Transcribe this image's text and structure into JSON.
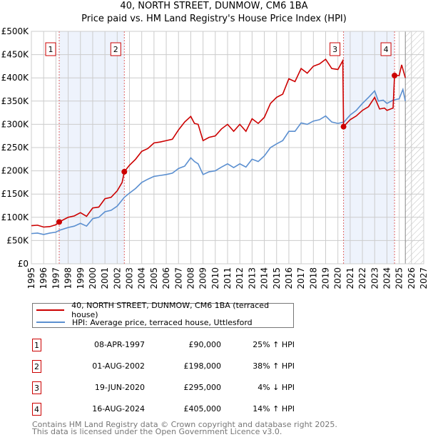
{
  "title": "40, NORTH STREET, DUNMOW, CM6 1BA",
  "subtitle": "Price paid vs. HM Land Registry's House Price Index (HPI)",
  "chart_data": {
    "type": "line",
    "title": "40, NORTH STREET, DUNMOW, CM6 1BA — Price paid vs. HM Land Registry's House Price Index (HPI)",
    "xlim": [
      1995,
      2027
    ],
    "ylim": [
      0,
      500000
    ],
    "yticks": [
      0,
      50000,
      100000,
      150000,
      200000,
      250000,
      300000,
      350000,
      400000,
      450000,
      500000
    ],
    "ytick_labels": [
      "£0",
      "£50K",
      "£100K",
      "£150K",
      "£200K",
      "£250K",
      "£300K",
      "£350K",
      "£400K",
      "£450K",
      "£500K"
    ],
    "xticks": [
      "1995",
      "1996",
      "1997",
      "1998",
      "1999",
      "2000",
      "2001",
      "2002",
      "2003",
      "2004",
      "2005",
      "2006",
      "2007",
      "2008",
      "2009",
      "2010",
      "2011",
      "2012",
      "2013",
      "2014",
      "2015",
      "2016",
      "2017",
      "2018",
      "2019",
      "2020",
      "2021",
      "2022",
      "2023",
      "2024",
      "2025",
      "2026",
      "2027"
    ],
    "grid": true,
    "shaded_ranges": [
      [
        1997.27,
        2002.58
      ],
      [
        2020.46,
        2024.62
      ]
    ],
    "forecast_from": 2025.5,
    "colors": {
      "property": "#cc0000",
      "hpi": "#5b8fd0",
      "shade": "#eef3fc"
    },
    "series": [
      {
        "name": "40, NORTH STREET, DUNMOW, CM6 1BA (terraced house)",
        "x": [
          1995,
          1995.5,
          1996,
          1996.5,
          1997,
          1997.27,
          1998,
          1998.5,
          1999,
          1999.5,
          2000,
          2000.5,
          2001,
          2001.5,
          2002,
          2002.4,
          2002.58,
          2003,
          2003.5,
          2004,
          2004.5,
          2005,
          2005.5,
          2006,
          2006.5,
          2007,
          2007.5,
          2008,
          2008.3,
          2008.6,
          2009,
          2009.5,
          2010,
          2010.5,
          2011,
          2011.5,
          2012,
          2012.5,
          2013,
          2013.5,
          2014,
          2014.5,
          2015,
          2015.5,
          2016,
          2016.5,
          2017,
          2017.5,
          2018,
          2018.5,
          2019,
          2019.5,
          2020,
          2020.4,
          2020.46,
          2021,
          2021.5,
          2022,
          2022.5,
          2023,
          2023.4,
          2023.8,
          2024,
          2024.5,
          2024.62,
          2025,
          2025.2,
          2025.5
        ],
        "values": [
          82000,
          83000,
          79000,
          80000,
          84000,
          90000,
          100000,
          103000,
          110000,
          102000,
          120000,
          122000,
          140000,
          143000,
          157000,
          175000,
          198000,
          212000,
          225000,
          242000,
          248000,
          260000,
          262000,
          265000,
          268000,
          288000,
          305000,
          317000,
          302000,
          300000,
          265000,
          272000,
          275000,
          290000,
          300000,
          285000,
          300000,
          285000,
          312000,
          302000,
          315000,
          345000,
          358000,
          365000,
          398000,
          392000,
          420000,
          410000,
          425000,
          430000,
          440000,
          420000,
          418000,
          437000,
          295000,
          310000,
          318000,
          330000,
          338000,
          358000,
          333000,
          335000,
          330000,
          335000,
          405000,
          405000,
          428000,
          400000
        ]
      },
      {
        "name": "HPI: Average price, terraced house, Uttlesford",
        "x": [
          1995,
          1995.5,
          1996,
          1996.5,
          1997,
          1997.27,
          1998,
          1998.5,
          1999,
          1999.5,
          2000,
          2000.5,
          2001,
          2001.5,
          2002,
          2002.58,
          2003,
          2003.5,
          2004,
          2004.5,
          2005,
          2005.5,
          2006,
          2006.5,
          2007,
          2007.5,
          2008,
          2008.3,
          2008.6,
          2009,
          2009.5,
          2010,
          2010.5,
          2011,
          2011.5,
          2012,
          2012.5,
          2013,
          2013.5,
          2014,
          2014.5,
          2015,
          2015.5,
          2016,
          2016.5,
          2017,
          2017.5,
          2018,
          2018.5,
          2019,
          2019.5,
          2020,
          2020.5,
          2021,
          2021.5,
          2022,
          2022.5,
          2023,
          2023.3,
          2023.7,
          2024,
          2024.5,
          2025,
          2025.3,
          2025.5
        ],
        "values": [
          65000,
          66000,
          63000,
          66000,
          68000,
          72000,
          78000,
          81000,
          87000,
          81000,
          97000,
          100000,
          112000,
          115000,
          124000,
          143000,
          152000,
          162000,
          175000,
          182000,
          188000,
          190000,
          192000,
          195000,
          205000,
          210000,
          228000,
          220000,
          215000,
          192000,
          198000,
          200000,
          208000,
          215000,
          207000,
          215000,
          208000,
          225000,
          220000,
          232000,
          250000,
          258000,
          265000,
          285000,
          285000,
          303000,
          300000,
          307000,
          310000,
          318000,
          305000,
          302000,
          305000,
          320000,
          330000,
          345000,
          358000,
          372000,
          350000,
          352000,
          345000,
          352000,
          355000,
          375000,
          350000
        ]
      }
    ],
    "sales": [
      {
        "label": "1",
        "x": 1997.27,
        "value": 90000
      },
      {
        "label": "2",
        "x": 2002.58,
        "value": 198000
      },
      {
        "label": "3",
        "x": 2020.46,
        "value": 295000
      },
      {
        "label": "4",
        "x": 2024.62,
        "value": 405000
      }
    ]
  },
  "legend": {
    "property": "40, NORTH STREET, DUNMOW, CM6 1BA (terraced house)",
    "hpi": "HPI: Average price, terraced house, Uttlesford"
  },
  "transactions": [
    {
      "num": "1",
      "date": "08-APR-1997",
      "price": "£90,000",
      "hpi": "25% ↑ HPI"
    },
    {
      "num": "2",
      "date": "01-AUG-2002",
      "price": "£198,000",
      "hpi": "38% ↑ HPI"
    },
    {
      "num": "3",
      "date": "19-JUN-2020",
      "price": "£295,000",
      "hpi": "4% ↓ HPI"
    },
    {
      "num": "4",
      "date": "16-AUG-2024",
      "price": "£405,000",
      "hpi": "14% ↑ HPI"
    }
  ],
  "footer": {
    "line1": "Contains HM Land Registry data © Crown copyright and database right 2025.",
    "line2": "This data is licensed under the Open Government Licence v3.0."
  }
}
